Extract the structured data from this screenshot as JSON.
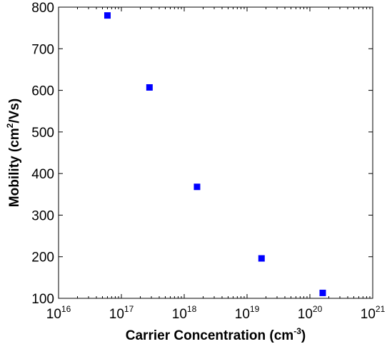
{
  "chart_data": {
    "type": "scatter",
    "title": "",
    "xlabel": {
      "prefix": "Carrier Concentration (cm",
      "sup": "-3",
      "suffix": ")"
    },
    "ylabel": {
      "prefix": "Mobility (cm",
      "sup": "2",
      "suffix": "/Vs)"
    },
    "x_scale": "log",
    "xlim": [
      1e+16,
      1e+21
    ],
    "ylim": [
      100,
      800
    ],
    "x_ticks": [
      {
        "base": "10",
        "exp": "16",
        "value": 1e+16
      },
      {
        "base": "10",
        "exp": "17",
        "value": 1e+17
      },
      {
        "base": "10",
        "exp": "18",
        "value": 1e+18
      },
      {
        "base": "10",
        "exp": "19",
        "value": 1e+19
      },
      {
        "base": "10",
        "exp": "20",
        "value": 1e+20
      },
      {
        "base": "10",
        "exp": "21",
        "value": 1e+21
      }
    ],
    "y_ticks": [
      "100",
      "200",
      "300",
      "400",
      "500",
      "600",
      "700",
      "800"
    ],
    "grid": false,
    "marker": "square",
    "marker_color": "#0000ff",
    "series": [
      {
        "points": [
          {
            "x": 6e+16,
            "y": 780
          },
          {
            "x": 2.8e+17,
            "y": 607
          },
          {
            "x": 1.6e+18,
            "y": 368
          },
          {
            "x": 1.7e+19,
            "y": 196
          },
          {
            "x": 1.6e+20,
            "y": 113
          }
        ]
      }
    ]
  }
}
